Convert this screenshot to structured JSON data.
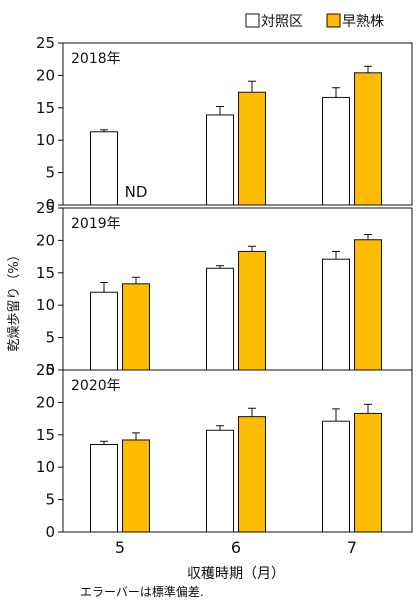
{
  "chart_data": {
    "type": "bar",
    "ylabel": "乾燥歩留り（%）",
    "xlabel": "収穫時期（月）",
    "categories": [
      "5",
      "6",
      "7"
    ],
    "ylim": [
      0,
      25
    ],
    "yticks": [
      0,
      5,
      10,
      15,
      20,
      25
    ],
    "legend": {
      "placement": "top-right",
      "series": [
        {
          "name": "対照区",
          "color": "#ffffff"
        },
        {
          "name": "早熟株",
          "color": "#ffbb00"
        }
      ]
    },
    "note": "エラーバーは標準偏差.",
    "panels": [
      {
        "title": "2018年",
        "series": [
          {
            "name": "対照区",
            "values": [
              11.3,
              13.9,
              16.6
            ],
            "errors": [
              0.3,
              1.3,
              1.5
            ]
          },
          {
            "name": "早熟株",
            "values": [
              null,
              17.4,
              20.4
            ],
            "errors": [
              null,
              1.7,
              1.0
            ]
          }
        ],
        "annotations": [
          {
            "category": "5",
            "series": "早熟株",
            "text": "ND"
          }
        ]
      },
      {
        "title": "2019年",
        "series": [
          {
            "name": "対照区",
            "values": [
              12.0,
              15.7,
              17.1
            ],
            "errors": [
              1.5,
              0.4,
              1.2
            ]
          },
          {
            "name": "早熟株",
            "values": [
              13.3,
              18.3,
              20.1
            ],
            "errors": [
              1.0,
              0.8,
              0.8
            ]
          }
        ],
        "annotations": []
      },
      {
        "title": "2020年",
        "series": [
          {
            "name": "対照区",
            "values": [
              13.5,
              15.7,
              17.1
            ],
            "errors": [
              0.5,
              0.7,
              1.9
            ]
          },
          {
            "name": "早熟株",
            "values": [
              14.2,
              17.8,
              18.3
            ],
            "errors": [
              1.1,
              1.3,
              1.4
            ]
          }
        ],
        "annotations": []
      }
    ]
  }
}
